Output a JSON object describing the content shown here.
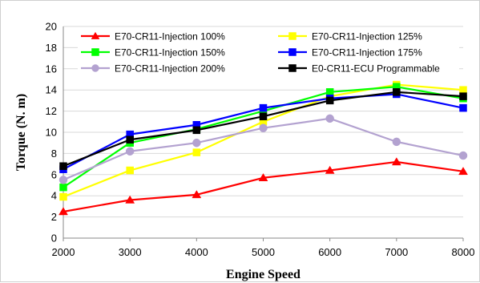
{
  "chart_data": {
    "type": "line",
    "title": "",
    "xlabel": "Engine Speed",
    "ylabel": "Torque (N. m)",
    "x": [
      2000,
      3000,
      4000,
      5000,
      6000,
      7000,
      8000
    ],
    "xlim": [
      2000,
      8000
    ],
    "ylim": [
      0,
      20
    ],
    "xticks": [
      2000,
      3000,
      4000,
      5000,
      6000,
      7000,
      8000
    ],
    "yticks": [
      0,
      2,
      4,
      6,
      8,
      10,
      12,
      14,
      16,
      18,
      20
    ],
    "grid": "horizontal",
    "legend": "top, two columns",
    "series": [
      {
        "name": "E70-CR11-Injection 100%",
        "color": "#ff0000",
        "marker": "triangle",
        "values": [
          2.5,
          3.6,
          4.1,
          5.7,
          6.4,
          7.2,
          6.3
        ]
      },
      {
        "name": "E70-CR11-Injection 125%",
        "color": "#ffff00",
        "marker": "square",
        "values": [
          3.9,
          6.4,
          8.1,
          11.0,
          13.4,
          14.5,
          14.0
        ]
      },
      {
        "name": "E70-CR11-Injection 150%",
        "color": "#00ff00",
        "marker": "square",
        "values": [
          4.8,
          9.0,
          10.3,
          12.0,
          13.8,
          14.3,
          13.2
        ]
      },
      {
        "name": "E70-CR11-Injection 175%",
        "color": "#0000ff",
        "marker": "square",
        "values": [
          6.5,
          9.8,
          10.7,
          12.3,
          13.2,
          13.6,
          12.3
        ]
      },
      {
        "name": "E70-CR11-Injection 200%",
        "color": "#b3a2d0",
        "marker": "circle",
        "values": [
          5.5,
          8.2,
          9.0,
          10.4,
          11.3,
          9.1,
          7.8
        ]
      },
      {
        "name": "E0-CR11-ECU Programmable",
        "color": "#000000",
        "marker": "square",
        "values": [
          6.8,
          9.3,
          10.2,
          11.5,
          13.0,
          13.8,
          13.4
        ]
      }
    ]
  }
}
